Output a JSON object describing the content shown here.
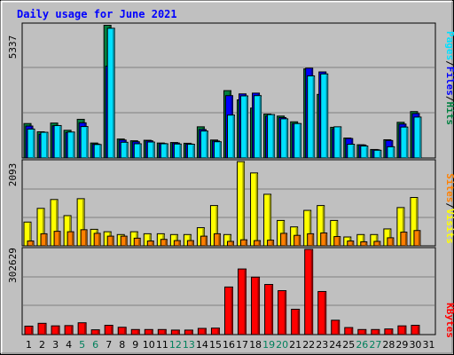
{
  "chart_data": {
    "type": "bar",
    "title": "Daily usage for June 2021",
    "categories": [
      "1",
      "2",
      "3",
      "4",
      "5",
      "6",
      "7",
      "8",
      "9",
      "10",
      "11",
      "12",
      "13",
      "14",
      "15",
      "16",
      "17",
      "18",
      "19",
      "20",
      "21",
      "22",
      "23",
      "24",
      "25",
      "26",
      "27",
      "28",
      "29",
      "30",
      "31"
    ],
    "weekend_days": [
      "5",
      "6",
      "12",
      "13",
      "19",
      "20",
      "26",
      "27"
    ],
    "colors": {
      "hits": "#008040",
      "files": "#0000ff",
      "pages": "#00e0ff",
      "visits": "#ffff00",
      "sites": "#ff8000",
      "kbytes": "#ff0000",
      "title": "#0000ff",
      "weekend_label": "#00805c",
      "weekday_label": "#000000",
      "background": "#c0c0c0",
      "plot": "#c0c0c0",
      "grid": "#808080"
    },
    "panels": [
      {
        "id": "hits-files-pages",
        "ymax_label": "5337",
        "ymax": 5337,
        "legend": [
          "Pages",
          "/",
          "Files",
          "/",
          "Hits"
        ],
        "legend_colors": [
          "#00e0ff",
          "#000000",
          "#0000ff",
          "#000000",
          "#008040"
        ],
        "series": [
          {
            "name": "Hits",
            "color": "#008040",
            "values": [
              1380,
              1050,
              1400,
              1110,
              1550,
              600,
              5320,
              760,
              690,
              710,
              600,
              620,
              590,
              1250,
              720,
              2700,
              2330,
              2000,
              1760,
              1680,
              1450,
              3570,
              2550,
              1230,
              800,
              530,
              340,
              730,
              1430,
              1860,
              0
            ]
          },
          {
            "name": "Files",
            "color": "#0000ff",
            "values": [
              1280,
              950,
              1290,
              1020,
              1410,
              560,
              3680,
              720,
              650,
              690,
              580,
              600,
              560,
              1140,
              680,
              2500,
              2570,
              2600,
              1680,
              1620,
              1380,
              3600,
              3450,
              1170,
              780,
              520,
              330,
              700,
              1360,
              1780,
              0
            ]
          },
          {
            "name": "Pages",
            "color": "#00e0ff",
            "values": [
              1160,
              1030,
              1300,
              1040,
              1260,
              540,
              5200,
              630,
              570,
              640,
              570,
              560,
              550,
              1080,
              650,
              1720,
              2490,
              2500,
              1740,
              1570,
              1380,
              3290,
              3370,
              1250,
              550,
              480,
              310,
              450,
              1240,
              1640,
              0
            ]
          }
        ]
      },
      {
        "id": "visits-sites",
        "ymax_label": "2093",
        "ymax": 2093,
        "legend": [
          "Sites",
          "/",
          "Visits"
        ],
        "legend_colors": [
          "#ff8000",
          "#000000",
          "#ffff00"
        ],
        "series": [
          {
            "name": "Visits",
            "color": "#ffff00",
            "values": [
              590,
              930,
              1150,
              750,
              1170,
              410,
              350,
              280,
              350,
              300,
              300,
              280,
              280,
              450,
              1000,
              280,
              2090,
              1810,
              1280,
              630,
              470,
              880,
              1000,
              630,
              220,
              280,
              280,
              420,
              950,
              1200,
              0
            ]
          },
          {
            "name": "Sites",
            "color": "#ff8000",
            "values": [
              120,
              300,
              360,
              350,
              400,
              310,
              240,
              240,
              190,
              120,
              160,
              130,
              130,
              240,
              300,
              110,
              150,
              130,
              140,
              310,
              260,
              300,
              320,
              230,
              120,
              100,
              110,
              200,
              340,
              380,
              0
            ]
          }
        ]
      },
      {
        "id": "kbytes",
        "ymax_label": "302629",
        "ymax": 302629,
        "legend": [
          "KBytes"
        ],
        "legend_colors": [
          "#ff0000"
        ],
        "series": [
          {
            "name": "KBytes",
            "color": "#ff0000",
            "values": [
              30000,
              40000,
              31000,
              32000,
              42000,
              17000,
              33000,
              26000,
              18000,
              18000,
              18000,
              16000,
              16000,
              22000,
              23000,
              169000,
              233000,
              204000,
              178000,
              156000,
              90000,
              302629,
              153000,
              51000,
              25000,
              18000,
              18000,
              20000,
              31000,
              33000,
              0
            ]
          }
        ]
      }
    ]
  }
}
